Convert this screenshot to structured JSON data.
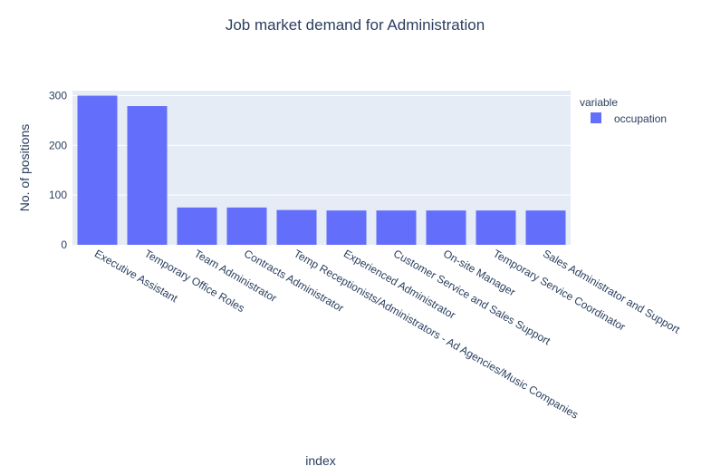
{
  "chart_data": {
    "type": "bar",
    "title": "Job market demand for Administration",
    "xlabel": "index",
    "ylabel": "No. of positions",
    "ylim": [
      0,
      310
    ],
    "yticks": [
      0,
      100,
      200,
      300
    ],
    "grid": true,
    "legend": {
      "title": "variable",
      "placement": "top-right"
    },
    "categories": [
      "Executive Assistant",
      "Temporary Office Roles",
      "Team Administrator",
      "Contracts Administrator",
      "Temp Receptionists/Administrators - Ad Agencies/Music Companies",
      "Experienced Administrator",
      "Customer Service and Sales Support",
      "On-site Manager",
      "Temporary Service Coordinator",
      "Sales Administrator and Support"
    ],
    "series": [
      {
        "name": "occupation",
        "values": [
          300,
          279,
          75,
          75,
          70,
          69,
          69,
          69,
          69,
          69
        ]
      }
    ],
    "colors": {
      "bar": "#636efa",
      "plot_bg": "#e5ecf6",
      "grid": "#ffffff",
      "text": "#2a3f5f"
    }
  }
}
